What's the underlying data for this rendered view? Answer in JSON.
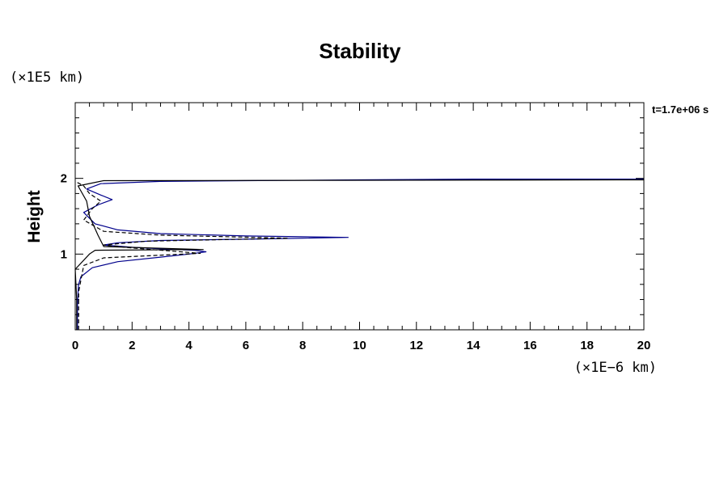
{
  "chart_data": {
    "type": "line",
    "title": "Stability",
    "ylabel": "Height",
    "xlabel": "",
    "x_unit": "(×1E−6 km)",
    "y_unit": "(×1E5 km)",
    "time_label": "t=1.7e+06 s",
    "xlim": [
      0,
      20
    ],
    "ylim": [
      0,
      3
    ],
    "x_ticks": [
      0,
      2,
      4,
      6,
      8,
      10,
      12,
      14,
      16,
      18,
      20
    ],
    "y_ticks": [
      1,
      2
    ],
    "grid": false,
    "series": [
      {
        "style": "solid",
        "color": "#00008b",
        "points": [
          [
            0.08,
            0.0
          ],
          [
            0.08,
            0.3
          ],
          [
            0.1,
            0.5
          ],
          [
            0.12,
            0.6
          ],
          [
            0.2,
            0.7
          ],
          [
            0.6,
            0.82
          ],
          [
            1.5,
            0.9
          ],
          [
            3.0,
            0.96
          ],
          [
            4.0,
            1.0
          ],
          [
            4.6,
            1.03
          ],
          [
            4.2,
            1.05
          ],
          [
            3.0,
            1.07
          ],
          [
            2.0,
            1.09
          ],
          [
            1.0,
            1.12
          ],
          [
            1.5,
            1.15
          ],
          [
            3.0,
            1.18
          ],
          [
            6.5,
            1.2
          ],
          [
            9.6,
            1.22
          ],
          [
            6.0,
            1.24
          ],
          [
            3.0,
            1.27
          ],
          [
            1.5,
            1.32
          ],
          [
            0.7,
            1.4
          ],
          [
            0.3,
            1.55
          ],
          [
            0.8,
            1.65
          ],
          [
            1.3,
            1.72
          ],
          [
            0.9,
            1.78
          ],
          [
            0.4,
            1.86
          ],
          [
            0.9,
            1.93
          ],
          [
            3.0,
            1.96
          ],
          [
            6.0,
            1.97
          ],
          [
            10.0,
            1.98
          ],
          [
            14.0,
            1.99
          ],
          [
            20.0,
            1.99
          ]
        ]
      },
      {
        "style": "solid",
        "color": "#000000",
        "points": [
          [
            0.05,
            0.0
          ],
          [
            0.05,
            0.4
          ],
          [
            0.0,
            0.8
          ],
          [
            0.5,
            1.0
          ],
          [
            0.7,
            1.05
          ],
          [
            4.5,
            1.06
          ],
          [
            1.0,
            1.1
          ],
          [
            0.8,
            1.25
          ],
          [
            0.5,
            1.5
          ],
          [
            0.4,
            1.7
          ],
          [
            0.1,
            1.9
          ],
          [
            1.0,
            1.97
          ],
          [
            20.0,
            1.98
          ]
        ]
      },
      {
        "style": "dashed",
        "color": "#000000",
        "points": [
          [
            0.12,
            0.0
          ],
          [
            0.12,
            0.5
          ],
          [
            0.3,
            0.85
          ],
          [
            1.0,
            0.95
          ],
          [
            4.4,
            1.01
          ],
          [
            2.0,
            1.08
          ],
          [
            1.0,
            1.12
          ],
          [
            2.5,
            1.17
          ],
          [
            7.5,
            1.21
          ],
          [
            3.0,
            1.25
          ],
          [
            1.0,
            1.3
          ],
          [
            0.3,
            1.45
          ],
          [
            0.6,
            1.6
          ],
          [
            0.9,
            1.7
          ],
          [
            0.5,
            1.8
          ],
          [
            0.3,
            1.9
          ],
          [
            0.0,
            1.96
          ]
        ]
      }
    ]
  }
}
